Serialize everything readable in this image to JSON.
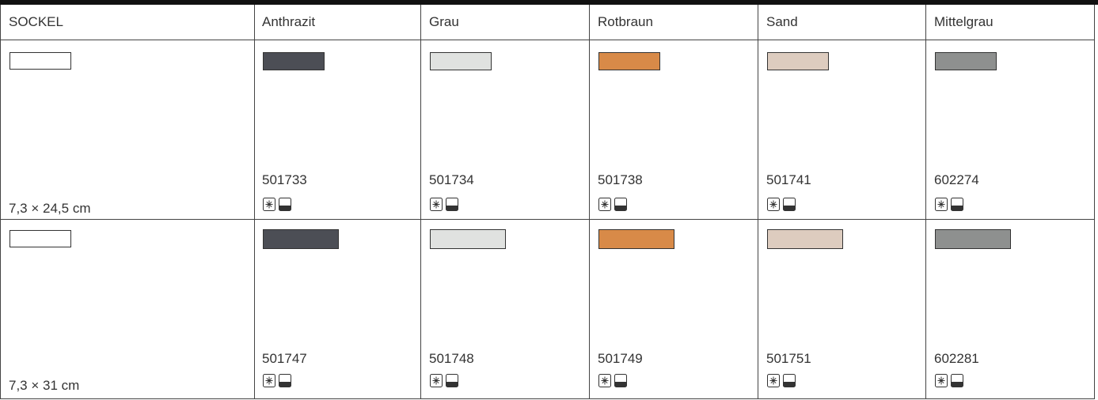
{
  "table": {
    "header": [
      "SOCKEL",
      "Anthrazit",
      "Grau",
      "Rotbraun",
      "Sand",
      "Mittelgrau"
    ],
    "rows": [
      {
        "size": "7,3 × 24,5 cm",
        "codes": [
          "501733",
          "501734",
          "501738",
          "501741",
          "602274"
        ]
      },
      {
        "size": "7,3 × 31 cm",
        "codes": [
          "501747",
          "501748",
          "501749",
          "501751",
          "602281"
        ]
      }
    ]
  }
}
